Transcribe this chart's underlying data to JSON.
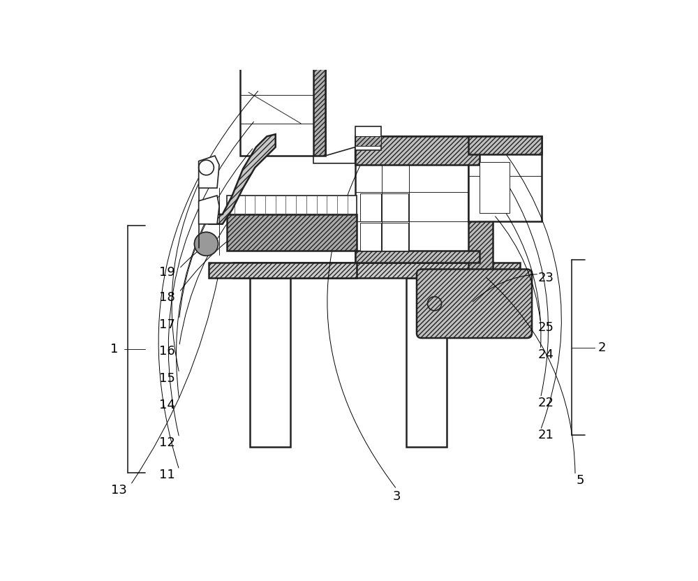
{
  "bg_color": "#ffffff",
  "line_color": "#222222",
  "label_color": "#000000",
  "font_size": 13,
  "labels_left": [
    "11",
    "12",
    "14",
    "15",
    "16",
    "17",
    "18",
    "19"
  ],
  "labels_right": [
    "21",
    "22",
    "24",
    "25",
    "23"
  ],
  "other_labels": [
    "1",
    "2",
    "3",
    "5",
    "13"
  ]
}
